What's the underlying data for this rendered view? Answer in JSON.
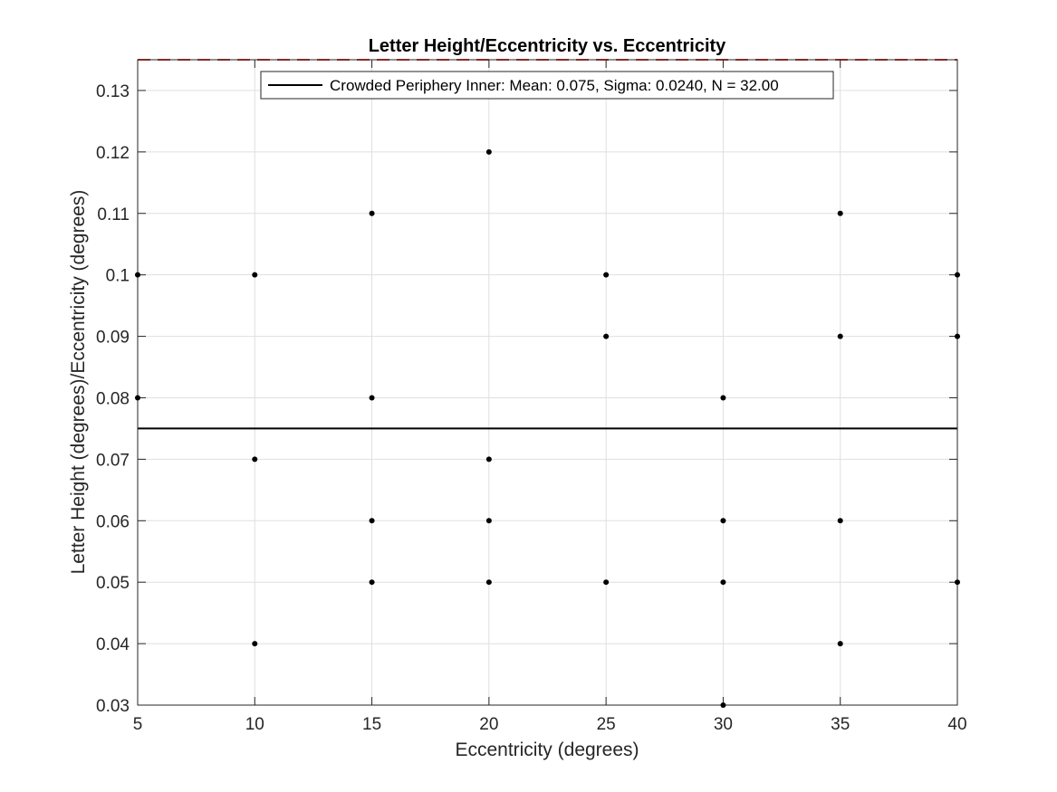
{
  "chart_data": {
    "type": "scatter",
    "title": "Letter Height/Eccentricity vs. Eccentricity",
    "xlabel": "Eccentricity (degrees)",
    "ylabel": "Letter Height (degrees)/Eccentricity (degrees)",
    "xlim": [
      5,
      40
    ],
    "ylim": [
      0.03,
      0.135
    ],
    "xticks": [
      5,
      10,
      15,
      20,
      25,
      30,
      35,
      40
    ],
    "xtick_labels": [
      "5",
      "10",
      "15",
      "20",
      "25",
      "30",
      "35",
      "40"
    ],
    "yticks": [
      0.03,
      0.04,
      0.05,
      0.06,
      0.07,
      0.08,
      0.09,
      0.1,
      0.11,
      0.12,
      0.13
    ],
    "ytick_labels": [
      "0.03",
      "0.04",
      "0.05",
      "0.06",
      "0.07",
      "0.08",
      "0.09",
      "0.1",
      "0.11",
      "0.12",
      "0.13"
    ],
    "grid": true,
    "legend_position": "top-center",
    "series": [
      {
        "kind": "points",
        "color": "#000000",
        "x": [
          5,
          5,
          10,
          10,
          10,
          15,
          15,
          15,
          15,
          20,
          20,
          20,
          20,
          25,
          25,
          25,
          30,
          30,
          30,
          30,
          35,
          35,
          35,
          35,
          40,
          40,
          40
        ],
        "y": [
          0.1,
          0.08,
          0.1,
          0.07,
          0.04,
          0.11,
          0.08,
          0.06,
          0.05,
          0.12,
          0.07,
          0.06,
          0.05,
          0.1,
          0.09,
          0.05,
          0.08,
          0.06,
          0.05,
          0.03,
          0.11,
          0.09,
          0.06,
          0.04,
          0.1,
          0.09,
          0.05
        ]
      },
      {
        "name": "Crowded Periphery Inner: Mean: 0.075, Sigma: 0.0240, N = 32.00",
        "kind": "hline",
        "y": 0.075,
        "color": "#000000"
      },
      {
        "kind": "hline",
        "y": 0.135,
        "color": "#e03030",
        "dashed": true
      }
    ]
  }
}
